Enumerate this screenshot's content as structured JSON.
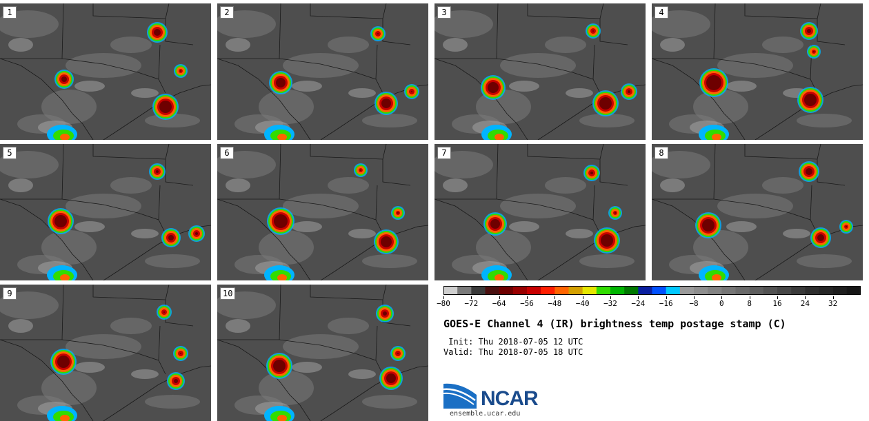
{
  "panels": [
    {
      "label": "1"
    },
    {
      "label": "2"
    },
    {
      "label": "3"
    },
    {
      "label": "4"
    },
    {
      "label": "5"
    },
    {
      "label": "6"
    },
    {
      "label": "7"
    },
    {
      "label": "8"
    },
    {
      "label": "9"
    },
    {
      "label": "10"
    }
  ],
  "colorbar": {
    "min": -80,
    "max": 40,
    "step": 4,
    "tick_labels": [
      "−80",
      "−72",
      "−64",
      "−56",
      "−48",
      "−40",
      "−32",
      "−24",
      "−16",
      "−8",
      "0",
      "8",
      "16",
      "24",
      "32"
    ],
    "colors": [
      "#cfcfcf",
      "#7a7a7a",
      "#3a3a3a",
      "#4a1010",
      "#6e0000",
      "#9a0000",
      "#c80000",
      "#ff1e00",
      "#ff6400",
      "#d4a000",
      "#e6e600",
      "#32dc00",
      "#00b400",
      "#007800",
      "#0a1fa0",
      "#0050ff",
      "#00c8ff",
      "#9a9a9a",
      "#8e8e8e",
      "#828282",
      "#767676",
      "#6a6a6a",
      "#5e5e5e",
      "#525252",
      "#464646",
      "#3a3a3a",
      "#2e2e2e",
      "#262626",
      "#1e1e1e",
      "#161616"
    ]
  },
  "title": "GOES-E Channel 4 (IR) brightness temp postage stamp (C)",
  "init": " Init: Thu 2018-07-05 12 UTC",
  "valid": "Valid: Thu 2018-07-05 18 UTC",
  "logo": {
    "text": "NCAR",
    "url": "ensemble.ucar.edu",
    "color": "#1a4b8c"
  },
  "colors": {
    "background": "#4e4e4e",
    "cloud": "#9a9a9a",
    "border": "#1a1a1a"
  }
}
